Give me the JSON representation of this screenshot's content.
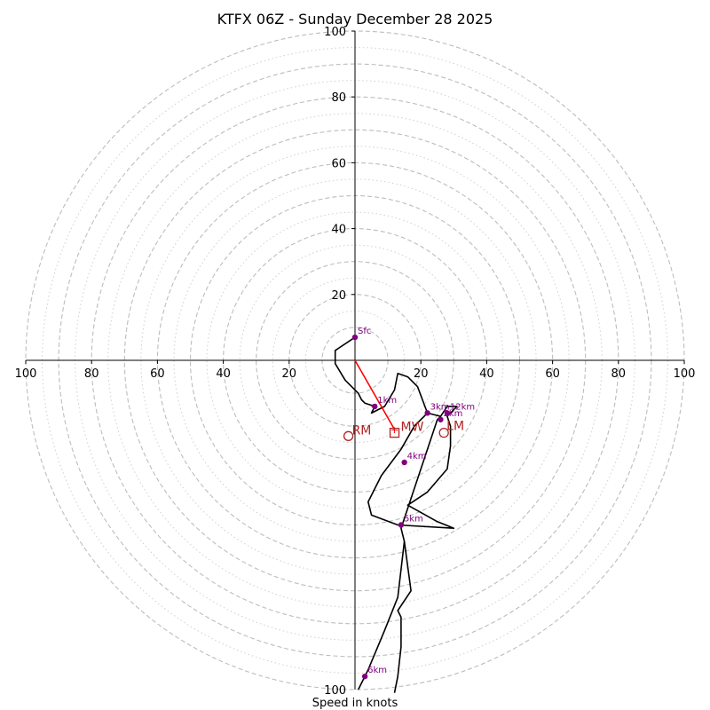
{
  "chart_data": {
    "type": "hodograph",
    "title": "KTFX 06Z - Sunday December 28 2025",
    "xlabel": "Speed in knots",
    "units": "knots",
    "axis_range": [
      -100,
      100
    ],
    "major_rings": [
      10,
      20,
      30,
      40,
      50,
      60,
      70,
      80,
      90,
      100
    ],
    "minor_rings": [
      15,
      25,
      35,
      45,
      55,
      65,
      75,
      85,
      95
    ],
    "x_tick_labels": [
      "100",
      "80",
      "60",
      "40",
      "20",
      "20",
      "40",
      "60",
      "80",
      "100"
    ],
    "x_tick_values": [
      -100,
      -80,
      -60,
      -40,
      -20,
      20,
      40,
      60,
      80,
      100
    ],
    "y_tick_labels": [
      "20",
      "40",
      "60",
      "80",
      "100"
    ],
    "y_tick_values": [
      20,
      40,
      60,
      80,
      100
    ],
    "hodograph_line": [
      [
        0,
        7
      ],
      [
        -6,
        3
      ],
      [
        -6,
        -1
      ],
      [
        -3,
        -6
      ],
      [
        1,
        -10
      ],
      [
        2,
        -12
      ],
      [
        3,
        -13
      ],
      [
        6,
        -14
      ],
      [
        5,
        -16
      ],
      [
        9,
        -14
      ],
      [
        12,
        -9
      ],
      [
        13,
        -4
      ],
      [
        16,
        -5
      ],
      [
        19,
        -8
      ],
      [
        22,
        -16
      ],
      [
        26,
        -17
      ],
      [
        28,
        -14
      ],
      [
        31,
        -14
      ],
      [
        28,
        -17
      ],
      [
        29,
        -20
      ],
      [
        29,
        -26
      ],
      [
        28,
        -33
      ],
      [
        22,
        -40
      ],
      [
        16,
        -44
      ],
      [
        25,
        -49
      ],
      [
        30,
        -51
      ],
      [
        13,
        -50
      ],
      [
        5,
        -47
      ],
      [
        4,
        -43
      ],
      [
        8,
        -35
      ],
      [
        14,
        -27
      ],
      [
        18,
        -20
      ],
      [
        22,
        -16
      ],
      [
        26,
        -17
      ],
      [
        25,
        -18
      ],
      [
        14,
        -51
      ],
      [
        15,
        -55
      ],
      [
        17,
        -70
      ],
      [
        13,
        -76
      ],
      [
        14,
        -78
      ],
      [
        14,
        -87
      ],
      [
        13,
        -96
      ],
      [
        12,
        -101
      ]
    ],
    "hodograph_tail": [
      [
        15,
        -55
      ],
      [
        13,
        -72
      ],
      [
        9,
        -82
      ],
      [
        4,
        -94
      ],
      [
        1,
        -100
      ]
    ],
    "height_markers": [
      {
        "label": "Sfc",
        "u": 0,
        "v": 7
      },
      {
        "label": "1km",
        "u": 6,
        "v": -14
      },
      {
        "label": "3km",
        "u": 22,
        "v": -16
      },
      {
        "label": "2km",
        "u": 26,
        "v": -18
      },
      {
        "label": "12km",
        "u": 28,
        "v": -16
      },
      {
        "label": "4km",
        "u": 15,
        "v": -31
      },
      {
        "label": "5km",
        "u": 14,
        "v": -50
      },
      {
        "label": "6km",
        "u": 3,
        "v": -96
      }
    ],
    "mean_wind": {
      "label": "MW",
      "u": 12,
      "v": -22
    },
    "right_mover": {
      "label": "RM",
      "u": -2,
      "v": -23
    },
    "left_mover": {
      "label": "LM",
      "u": 27,
      "v": -22
    },
    "shear_vector": {
      "from": [
        0,
        0
      ],
      "to": [
        12,
        -21
      ]
    }
  }
}
